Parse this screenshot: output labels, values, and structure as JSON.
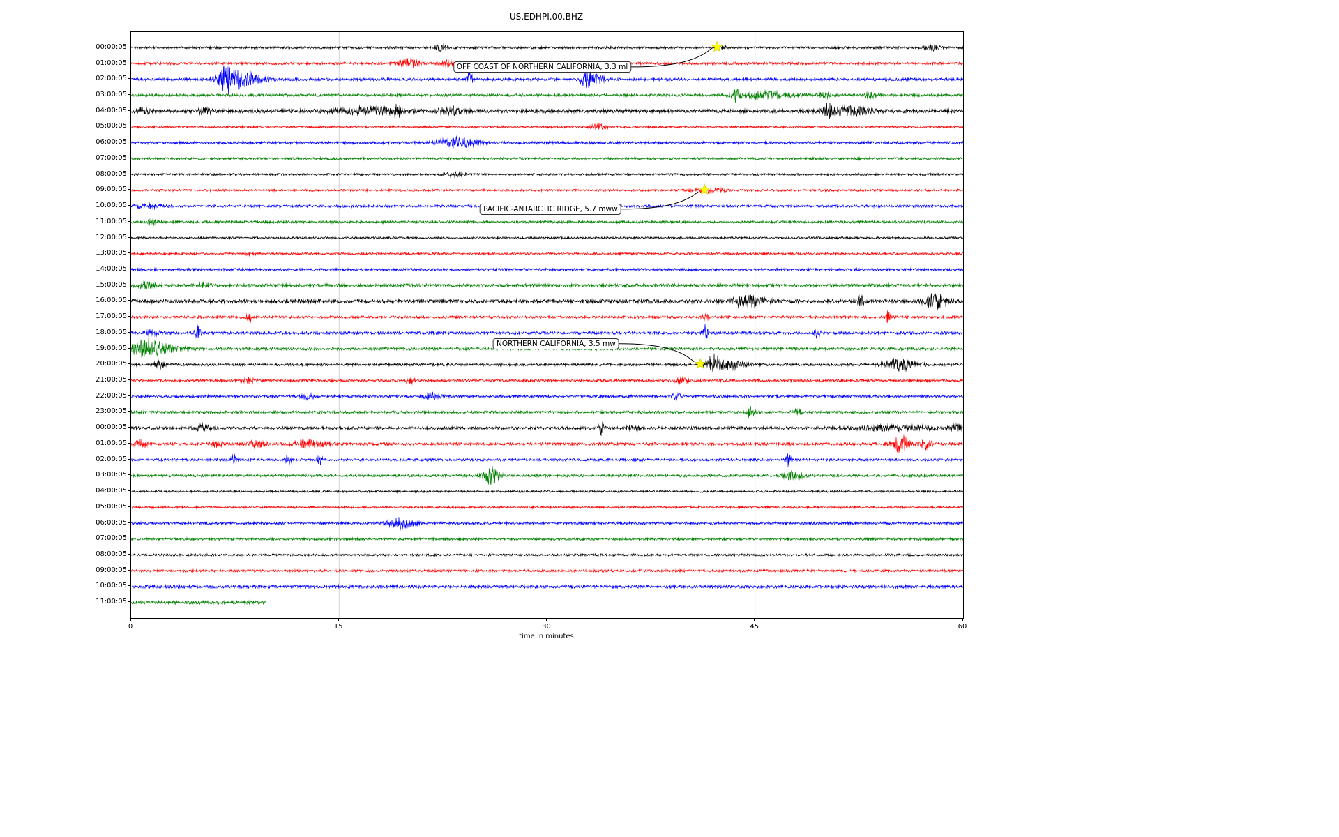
{
  "chart_data": {
    "type": "line",
    "subtype": "seismogram-dayplot",
    "title": "US.EDHPI.00.BHZ",
    "xlabel": "time in minutes",
    "xlim": [
      0,
      60
    ],
    "x_ticks": [
      0,
      15,
      30,
      45,
      60
    ],
    "x_tick_labels": [
      "0",
      "15",
      "30",
      "45",
      "60"
    ],
    "grid": true,
    "grid_color": "#c8c8c8",
    "marker_color": "#ffff00",
    "trace_color_cycle": [
      "#000000",
      "#ff0000",
      "#0000ff",
      "#008000"
    ],
    "rows": [
      {
        "label": "00:00:05",
        "color": "#000000",
        "amp": 1.7,
        "bursts": [
          {
            "t": 22.3,
            "amp": 5,
            "w": 0.25
          },
          {
            "t": 42.5,
            "amp": 3,
            "w": 0.3
          },
          {
            "t": 57.8,
            "amp": 3.5,
            "w": 0.35
          }
        ]
      },
      {
        "label": "01:00:05",
        "color": "#ff0000",
        "amp": 1.8,
        "bursts": [
          {
            "t": 20.0,
            "amp": 6,
            "w": 0.5
          },
          {
            "t": 22.8,
            "amp": 4,
            "w": 0.3
          }
        ]
      },
      {
        "label": "02:00:05",
        "color": "#0000ff",
        "amp": 2.0,
        "bursts": [
          {
            "t": 6.9,
            "amp": 15,
            "w": 0.45
          },
          {
            "t": 8.0,
            "amp": 11,
            "w": 0.9
          },
          {
            "t": 24.4,
            "amp": 11,
            "w": 0.14
          },
          {
            "t": 32.8,
            "amp": 13,
            "w": 0.3
          },
          {
            "t": 33.5,
            "amp": 6,
            "w": 0.4
          }
        ]
      },
      {
        "label": "03:00:05",
        "color": "#008000",
        "amp": 1.9,
        "bursts": [
          {
            "t": 43.6,
            "amp": 8,
            "w": 0.18
          },
          {
            "t": 45.8,
            "amp": 5,
            "w": 1.3
          },
          {
            "t": 50.0,
            "amp": 3,
            "w": 0.4
          },
          {
            "t": 53.3,
            "amp": 3.5,
            "w": 0.3
          }
        ]
      },
      {
        "label": "04:00:05",
        "color": "#000000",
        "amp": 2.6,
        "bursts": [
          {
            "t": 0.9,
            "amp": 5,
            "w": 0.3
          },
          {
            "t": 5.3,
            "amp": 4,
            "w": 0.3
          },
          {
            "t": 17.0,
            "amp": 5,
            "w": 1.6
          },
          {
            "t": 19.2,
            "amp": 8,
            "w": 0.15
          },
          {
            "t": 23.0,
            "amp": 5,
            "w": 0.6
          },
          {
            "t": 50.3,
            "amp": 15,
            "w": 0.18
          },
          {
            "t": 51.8,
            "amp": 6,
            "w": 1.1
          }
        ]
      },
      {
        "label": "05:00:05",
        "color": "#ff0000",
        "amp": 1.6,
        "bursts": [
          {
            "t": 33.7,
            "amp": 4,
            "w": 0.4
          }
        ]
      },
      {
        "label": "06:00:05",
        "color": "#0000ff",
        "amp": 1.9,
        "bursts": [
          {
            "t": 23.5,
            "amp": 7,
            "w": 1.0
          }
        ]
      },
      {
        "label": "07:00:05",
        "color": "#008000",
        "amp": 1.7,
        "bursts": []
      },
      {
        "label": "08:00:05",
        "color": "#000000",
        "amp": 1.5,
        "bursts": [
          {
            "t": 23.3,
            "amp": 2.5,
            "w": 0.5
          }
        ]
      },
      {
        "label": "09:00:05",
        "color": "#ff0000",
        "amp": 1.6,
        "bursts": [
          {
            "t": 41.6,
            "amp": 2.5,
            "w": 0.8
          }
        ]
      },
      {
        "label": "10:00:05",
        "color": "#0000ff",
        "amp": 1.8,
        "bursts": [
          {
            "t": 1.0,
            "amp": 2.5,
            "w": 0.8
          }
        ]
      },
      {
        "label": "11:00:05",
        "color": "#008000",
        "amp": 1.8,
        "bursts": [
          {
            "t": 1.6,
            "amp": 3,
            "w": 0.3
          }
        ]
      },
      {
        "label": "12:00:05",
        "color": "#000000",
        "amp": 1.5,
        "bursts": []
      },
      {
        "label": "13:00:05",
        "color": "#ff0000",
        "amp": 1.6,
        "bursts": [
          {
            "t": 8.7,
            "amp": 2.5,
            "w": 0.3
          }
        ]
      },
      {
        "label": "14:00:05",
        "color": "#0000ff",
        "amp": 1.8,
        "bursts": []
      },
      {
        "label": "15:00:05",
        "color": "#008000",
        "amp": 2.2,
        "bursts": [
          {
            "t": 1.1,
            "amp": 4,
            "w": 0.5
          },
          {
            "t": 5.2,
            "amp": 3,
            "w": 0.3
          }
        ]
      },
      {
        "label": "16:00:05",
        "color": "#000000",
        "amp": 2.7,
        "bursts": [
          {
            "t": 44.5,
            "amp": 8,
            "w": 0.8
          },
          {
            "t": 52.6,
            "amp": 7,
            "w": 0.18
          },
          {
            "t": 58.0,
            "amp": 11,
            "w": 0.5
          }
        ]
      },
      {
        "label": "17:00:05",
        "color": "#ff0000",
        "amp": 1.9,
        "bursts": [
          {
            "t": 8.5,
            "amp": 9,
            "w": 0.12
          },
          {
            "t": 41.5,
            "amp": 4,
            "w": 0.2
          },
          {
            "t": 54.6,
            "amp": 9,
            "w": 0.12
          }
        ]
      },
      {
        "label": "18:00:05",
        "color": "#0000ff",
        "amp": 2.1,
        "bursts": [
          {
            "t": 1.6,
            "amp": 4,
            "w": 0.3
          },
          {
            "t": 4.8,
            "amp": 10,
            "w": 0.14
          },
          {
            "t": 41.4,
            "amp": 12,
            "w": 0.14
          },
          {
            "t": 49.5,
            "amp": 9,
            "w": 0.14
          }
        ]
      },
      {
        "label": "19:00:05",
        "color": "#008000",
        "amp": 2.0,
        "bursts": [
          {
            "t": 0.8,
            "amp": 9,
            "w": 0.6
          },
          {
            "t": 2.2,
            "amp": 8,
            "w": 0.9
          }
        ]
      },
      {
        "label": "20:00:05",
        "color": "#000000",
        "amp": 1.9,
        "bursts": [
          {
            "t": 2.1,
            "amp": 6,
            "w": 0.25
          },
          {
            "t": 42.0,
            "amp": 13,
            "w": 0.3
          },
          {
            "t": 43.0,
            "amp": 6,
            "w": 0.8
          },
          {
            "t": 55.5,
            "amp": 8,
            "w": 0.8
          }
        ]
      },
      {
        "label": "21:00:05",
        "color": "#ff0000",
        "amp": 1.9,
        "bursts": [
          {
            "t": 8.5,
            "amp": 4,
            "w": 0.3
          },
          {
            "t": 20.0,
            "amp": 4,
            "w": 0.3
          },
          {
            "t": 39.7,
            "amp": 3.5,
            "w": 0.3
          }
        ]
      },
      {
        "label": "22:00:05",
        "color": "#0000ff",
        "amp": 1.9,
        "bursts": [
          {
            "t": 12.7,
            "amp": 5,
            "w": 0.3
          },
          {
            "t": 21.7,
            "amp": 5,
            "w": 0.4
          },
          {
            "t": 39.4,
            "amp": 3.5,
            "w": 0.3
          }
        ]
      },
      {
        "label": "23:00:05",
        "color": "#008000",
        "amp": 1.9,
        "bursts": [
          {
            "t": 44.7,
            "amp": 10,
            "w": 0.18
          },
          {
            "t": 48.0,
            "amp": 4,
            "w": 0.25
          }
        ]
      },
      {
        "label": "00:00:05",
        "color": "#000000",
        "amp": 2.1,
        "bursts": [
          {
            "t": 5.2,
            "amp": 4,
            "w": 0.4
          },
          {
            "t": 33.9,
            "amp": 10,
            "w": 0.14
          },
          {
            "t": 36.2,
            "amp": 4,
            "w": 0.3
          },
          {
            "t": 55.0,
            "amp": 3,
            "w": 2.0
          },
          {
            "t": 59.6,
            "amp": 5,
            "w": 0.3
          }
        ]
      },
      {
        "label": "01:00:05",
        "color": "#ff0000",
        "amp": 2.1,
        "bursts": [
          {
            "t": 0.7,
            "amp": 5,
            "w": 0.3
          },
          {
            "t": 6.2,
            "amp": 4,
            "w": 0.3
          },
          {
            "t": 9.0,
            "amp": 5,
            "w": 0.4
          },
          {
            "t": 12.8,
            "amp": 5,
            "w": 0.8
          },
          {
            "t": 55.5,
            "amp": 12,
            "w": 0.4
          },
          {
            "t": 57.3,
            "amp": 7,
            "w": 0.3
          }
        ]
      },
      {
        "label": "02:00:05",
        "color": "#0000ff",
        "amp": 1.8,
        "bursts": [
          {
            "t": 7.4,
            "amp": 6,
            "w": 0.14
          },
          {
            "t": 11.3,
            "amp": 7,
            "w": 0.14
          },
          {
            "t": 13.6,
            "amp": 6,
            "w": 0.14
          },
          {
            "t": 47.4,
            "amp": 9,
            "w": 0.12
          }
        ]
      },
      {
        "label": "03:00:05",
        "color": "#008000",
        "amp": 1.9,
        "bursts": [
          {
            "t": 26.0,
            "amp": 12,
            "w": 0.4
          },
          {
            "t": 47.8,
            "amp": 6,
            "w": 0.5
          }
        ]
      },
      {
        "label": "04:00:05",
        "color": "#000000",
        "amp": 1.5,
        "bursts": []
      },
      {
        "label": "05:00:05",
        "color": "#ff0000",
        "amp": 1.7,
        "bursts": []
      },
      {
        "label": "06:00:05",
        "color": "#0000ff",
        "amp": 1.9,
        "bursts": [
          {
            "t": 19.5,
            "amp": 8,
            "w": 0.6
          }
        ]
      },
      {
        "label": "07:00:05",
        "color": "#008000",
        "amp": 1.8,
        "bursts": []
      },
      {
        "label": "08:00:05",
        "color": "#000000",
        "amp": 1.6,
        "bursts": []
      },
      {
        "label": "09:00:05",
        "color": "#ff0000",
        "amp": 1.7,
        "bursts": []
      },
      {
        "label": "10:00:05",
        "color": "#0000ff",
        "amp": 2.3,
        "bursts": []
      },
      {
        "label": "11:00:05",
        "color": "#008000",
        "amp": 2.4,
        "extent": 0.162,
        "bursts": []
      }
    ],
    "events": [
      {
        "label": "OFF COAST OF NORTHERN CALIFORNIA, 3.3 ml",
        "row": 0,
        "t_minutes": 42.3,
        "label_t": 29.7,
        "label_row": 1.26
      },
      {
        "label": "PACIFIC-ANTARCTIC RIDGE, 5.7 mww",
        "row": 9,
        "t_minutes": 41.4,
        "label_t": 30.3,
        "label_row": 10.23
      },
      {
        "label": "NORTHERN CALIFORNIA, 3.5 mw",
        "row": 20,
        "t_minutes": 41.1,
        "label_t": 30.7,
        "label_row": 18.72
      }
    ]
  }
}
